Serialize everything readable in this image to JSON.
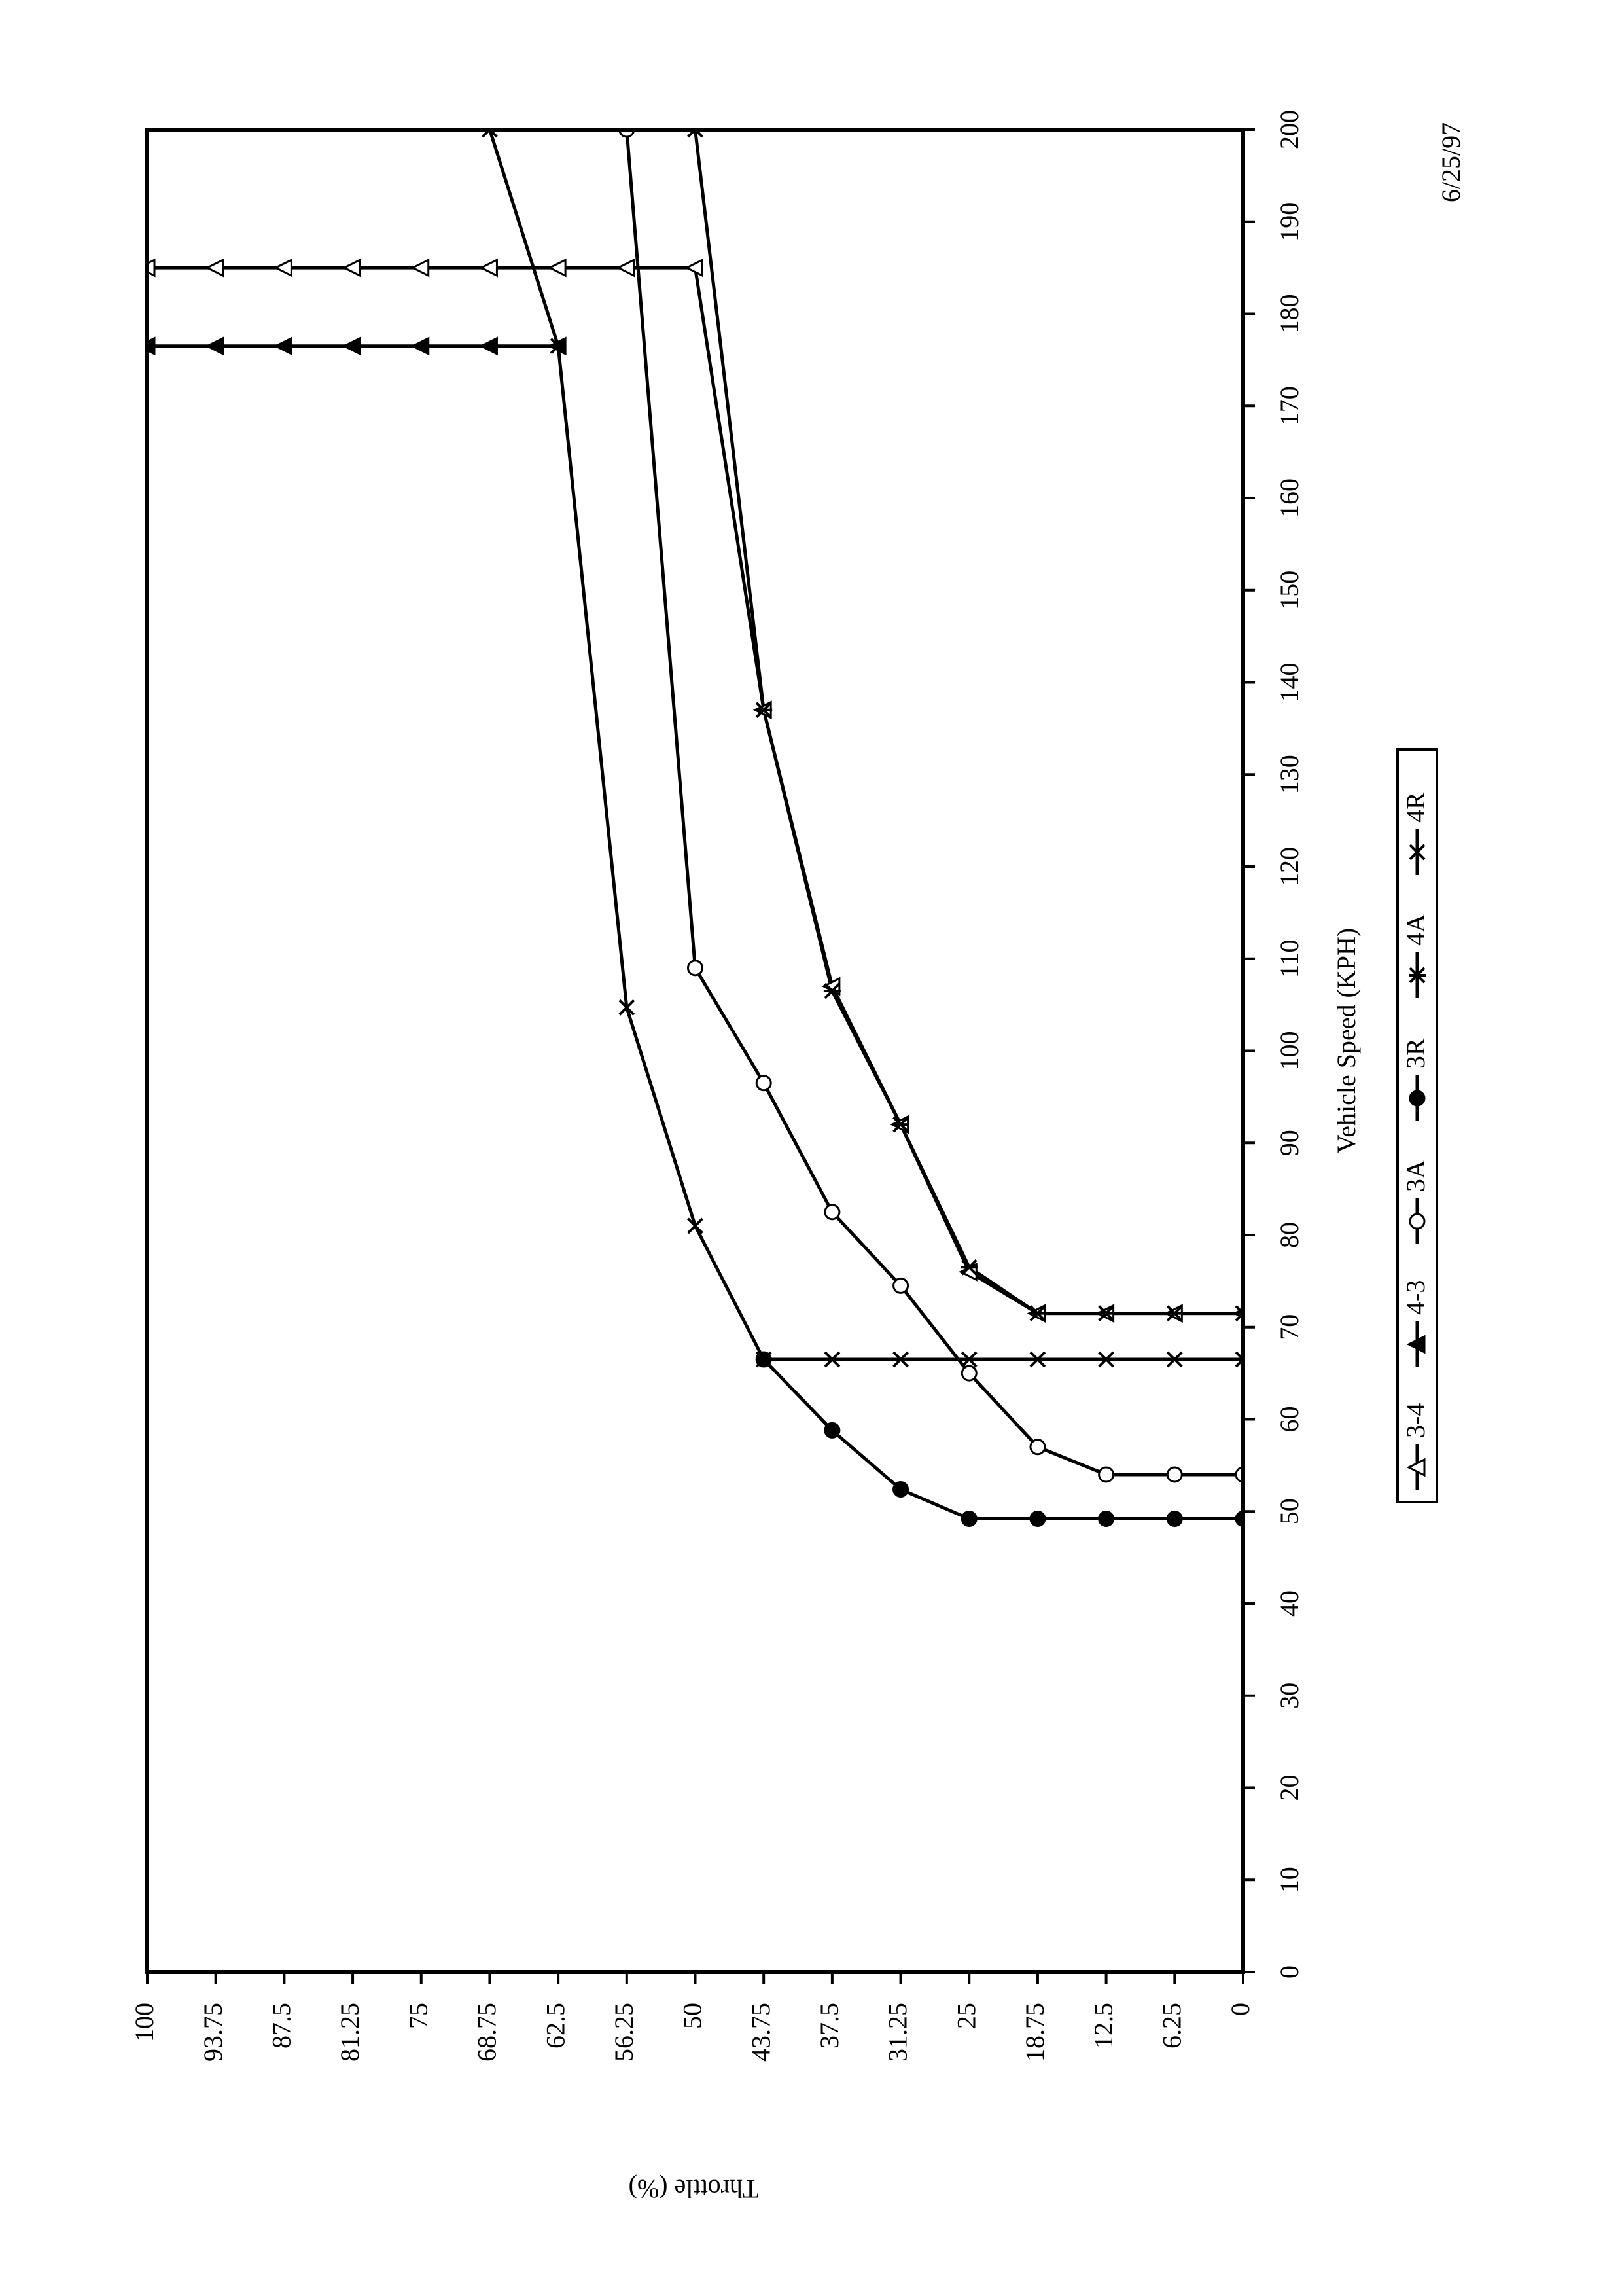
{
  "chart_data": {
    "type": "line",
    "x_label": "Vehicle Speed (KPH)",
    "y_label": "Throttle (%)",
    "annotation": "6/25/97",
    "xlim": [
      0,
      200
    ],
    "xticks": [
      0,
      10,
      20,
      30,
      40,
      50,
      60,
      70,
      80,
      90,
      100,
      110,
      120,
      130,
      140,
      150,
      160,
      170,
      180,
      190,
      200
    ],
    "ylim": [
      0,
      100
    ],
    "yticks": [
      0,
      6.25,
      12.5,
      18.75,
      25,
      31.25,
      37.5,
      43.75,
      50,
      56.25,
      62.5,
      68.75,
      75,
      81.25,
      87.5,
      93.75,
      100
    ],
    "series": [
      {
        "name": "3-4",
        "color": "#000000",
        "marker": "triangle-open",
        "x": [
          185,
          185,
          185,
          185,
          185,
          185,
          185,
          185,
          185,
          137,
          107,
          92,
          76,
          71.5,
          71.5,
          71.5,
          71.5
        ],
        "values": [
          100,
          93.75,
          87.5,
          81.25,
          75,
          68.75,
          62.5,
          56.25,
          50,
          43.75,
          37.5,
          31.25,
          25,
          18.75,
          12.5,
          6.25,
          0
        ]
      },
      {
        "name": "4-3",
        "color": "#000000",
        "marker": "triangle-filled",
        "x": [
          176.5,
          176.5,
          176.5,
          176.5,
          176.5,
          176.5,
          176.5
        ],
        "values": [
          100,
          93.75,
          87.5,
          81.25,
          75,
          68.75,
          62.5
        ]
      },
      {
        "name": "3A",
        "color": "#000000",
        "marker": "circle-open",
        "x": [
          200,
          109,
          96.5,
          82.5,
          74.5,
          65,
          57,
          54,
          54,
          54
        ],
        "values": [
          56.25,
          50,
          43.75,
          37.5,
          31.25,
          25,
          18.75,
          12.5,
          6.25,
          0
        ]
      },
      {
        "name": "3R",
        "color": "#000000",
        "marker": "circle-filled",
        "x": [
          66.5,
          58.8,
          52.4,
          49.2,
          49.2,
          49.2,
          49.2,
          49.2
        ],
        "values": [
          43.75,
          37.5,
          31.25,
          25,
          18.75,
          12.5,
          6.25,
          0
        ]
      },
      {
        "name": "4A",
        "color": "#000000",
        "marker": "asterisk",
        "x": [
          200,
          137,
          106.5,
          92,
          76.5,
          71.5,
          71.5,
          71.5,
          71.5
        ],
        "values": [
          50,
          43.75,
          37.5,
          31.25,
          25,
          18.75,
          12.5,
          6.25,
          0
        ]
      },
      {
        "name": "4R",
        "color": "#000000",
        "marker": "x",
        "x": [
          200,
          176.5,
          104.7,
          81,
          66.5,
          66.5,
          66.5,
          66.5,
          66.5,
          66.5,
          66.5,
          66.5
        ],
        "values": [
          68.75,
          62.5,
          56.25,
          50,
          43.75,
          37.5,
          31.25,
          25,
          18.75,
          12.5,
          6.25,
          0
        ]
      }
    ]
  }
}
